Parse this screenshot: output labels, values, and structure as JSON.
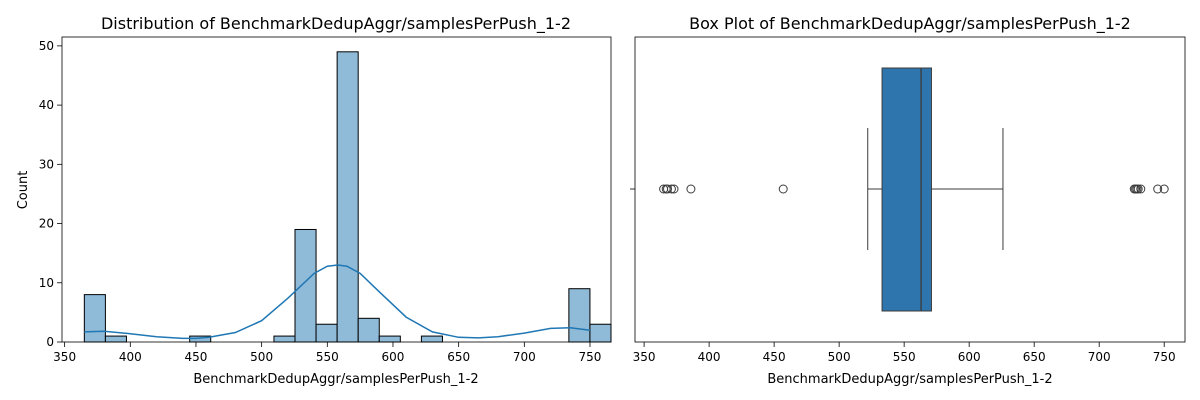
{
  "chart_data": [
    {
      "type": "bar",
      "title": "Distribution of BenchmarkDedupAggr/samplesPerPush_1-2",
      "xlabel": "BenchmarkDedupAggr/samplesPerPush_1-2",
      "ylabel": "Count",
      "xlim": [
        348,
        766
      ],
      "ylim": [
        0,
        51.5
      ],
      "xticks": [
        350,
        400,
        450,
        500,
        550,
        600,
        650,
        700,
        750
      ],
      "yticks": [
        0,
        10,
        20,
        30,
        40,
        50
      ],
      "bin_start": 365,
      "bin_width": 16.04,
      "counts": [
        8,
        1,
        0,
        0,
        0,
        1,
        0,
        0,
        0,
        1,
        19,
        3,
        49,
        4,
        1,
        0,
        1,
        0,
        0,
        0,
        0,
        0,
        0,
        9,
        3
      ],
      "bar_color": "#8fbad8",
      "kde": {
        "color": "#1f77b4",
        "x": [
          365,
          380,
          400,
          420,
          440,
          450,
          460,
          480,
          500,
          520,
          540,
          550,
          558,
          565,
          575,
          590,
          610,
          630,
          650,
          665,
          680,
          700,
          720,
          735,
          750
        ],
        "y": [
          1.7,
          1.8,
          1.4,
          0.9,
          0.6,
          0.6,
          0.8,
          1.6,
          3.6,
          7.4,
          11.6,
          12.8,
          13.0,
          12.8,
          11.6,
          8.4,
          4.2,
          1.7,
          0.8,
          0.7,
          0.9,
          1.5,
          2.3,
          2.4,
          2.0
        ]
      },
      "grid": false
    },
    {
      "type": "box",
      "title": "Box Plot of BenchmarkDedupAggr/samplesPerPush_1-2",
      "xlabel": "BenchmarkDedupAggr/samplesPerPush_1-2",
      "xlim": [
        343,
        766
      ],
      "xticks": [
        350,
        400,
        450,
        500,
        550,
        600,
        650,
        700,
        750
      ],
      "box": {
        "whisker_low": 522,
        "q1": 533,
        "median": 563,
        "q3": 571,
        "whisker_high": 626
      },
      "outliers": [
        365,
        367,
        368,
        371,
        373,
        386,
        457,
        727,
        728,
        729,
        730,
        732,
        745,
        750
      ],
      "box_color": "#2e75ae",
      "grid": false
    }
  ]
}
